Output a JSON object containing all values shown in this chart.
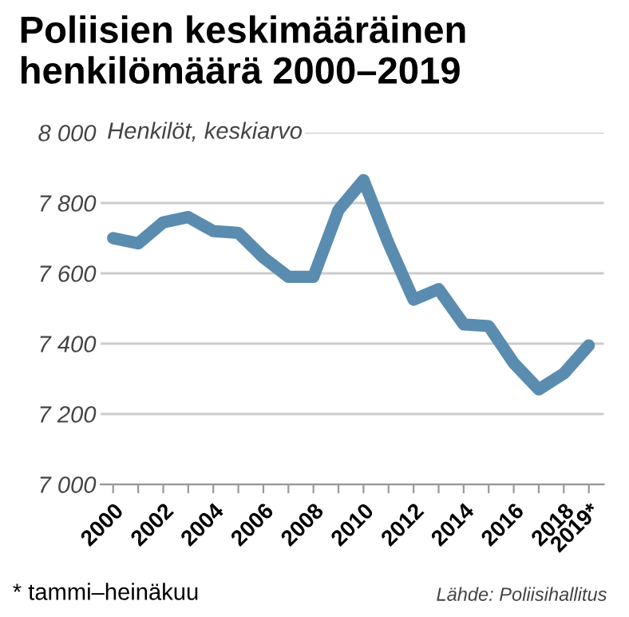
{
  "chart_data": {
    "type": "line",
    "title": "Poliisien keskimääräinen\nhenkilömäärä 2000–2019",
    "ylabel": "Henkilöt, keskiarvo",
    "x": [
      2000,
      2001,
      2002,
      2003,
      2004,
      2005,
      2006,
      2007,
      2008,
      2009,
      2010,
      2011,
      2012,
      2013,
      2014,
      2015,
      2016,
      2017,
      2018,
      2019
    ],
    "series": [
      {
        "color": "#5a8cb0",
        "values": [
          7700,
          7685,
          7745,
          7760,
          7720,
          7715,
          7645,
          7590,
          7590,
          7780,
          7865,
          7685,
          7525,
          7555,
          7455,
          7450,
          7345,
          7270,
          7315,
          7395
        ]
      }
    ],
    "xlim": [
      1999.5,
      2019.6
    ],
    "ylim": [
      7000,
      8000
    ],
    "xticks": [
      2000,
      {
        "value": 2001,
        "label": null
      },
      2002,
      {
        "value": 2003,
        "label": null
      },
      2004,
      {
        "value": 2005,
        "label": null
      },
      2006,
      {
        "value": 2007,
        "label": null
      },
      2008,
      {
        "value": 2009,
        "label": null
      },
      2010,
      {
        "value": 2011,
        "label": null
      },
      2012,
      {
        "value": 2013,
        "label": null
      },
      2014,
      {
        "value": 2015,
        "label": null
      },
      2016,
      {
        "value": 2017,
        "label": null
      },
      2018,
      {
        "value": 2019,
        "label": "2019*"
      }
    ],
    "yticks": [
      {
        "value": 7000,
        "label": "7 000"
      },
      {
        "value": 7200,
        "label": "7 200"
      },
      {
        "value": 7400,
        "label": "7 400"
      },
      {
        "value": 7600,
        "label": "7 600"
      },
      {
        "value": 7800,
        "label": "7 800"
      },
      {
        "value": 8000,
        "label": "8 000"
      }
    ],
    "grid": "y",
    "legend": false,
    "marker": "none",
    "line_style": "solid",
    "annotations": [
      "* tammi–heinäkuu",
      "Lähde: Poliisihallitus"
    ]
  }
}
